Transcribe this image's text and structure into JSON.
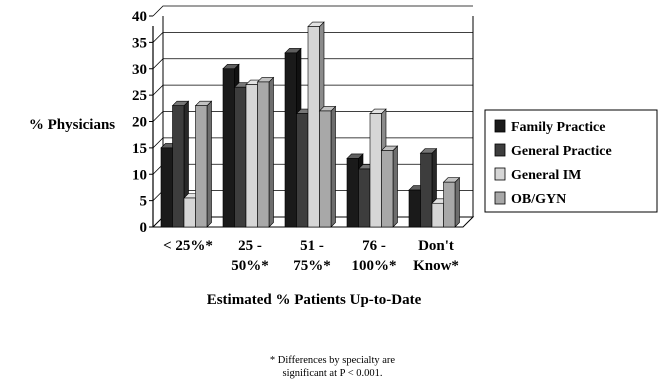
{
  "chart_data": {
    "type": "bar",
    "title": "",
    "xlabel": "Estimated % Patients Up-to-Date",
    "ylabel": "% Physicians",
    "ylim": [
      0,
      40
    ],
    "yticks": [
      "0",
      "5",
      "10",
      "15",
      "20",
      "25",
      "30",
      "35",
      "40"
    ],
    "categories": [
      [
        "< 25%*"
      ],
      [
        "25 -",
        "50%*"
      ],
      [
        "51 -",
        "75%*"
      ],
      [
        "76 -",
        "100%*"
      ],
      [
        "Don't",
        "Know*"
      ]
    ],
    "series": [
      {
        "name": "Family Practice",
        "color": "#1a1a1a",
        "values": [
          15,
          30,
          33,
          13,
          7
        ]
      },
      {
        "name": "General Practice",
        "color": "#3d3d3d",
        "values": [
          23,
          26.5,
          21.5,
          11,
          14
        ]
      },
      {
        "name": "General IM",
        "color": "#d6d6d6",
        "values": [
          5.5,
          27,
          38,
          21.5,
          4.5
        ]
      },
      {
        "name": "OB/GYN",
        "color": "#a8a8a8",
        "values": [
          23,
          27.5,
          22,
          14.5,
          8.5
        ]
      }
    ],
    "grid": true,
    "legend_position": "right",
    "bar_style": "3d"
  },
  "footnote": {
    "line1": "* Differences by specialty are",
    "line2": "significant at P < 0.001."
  }
}
